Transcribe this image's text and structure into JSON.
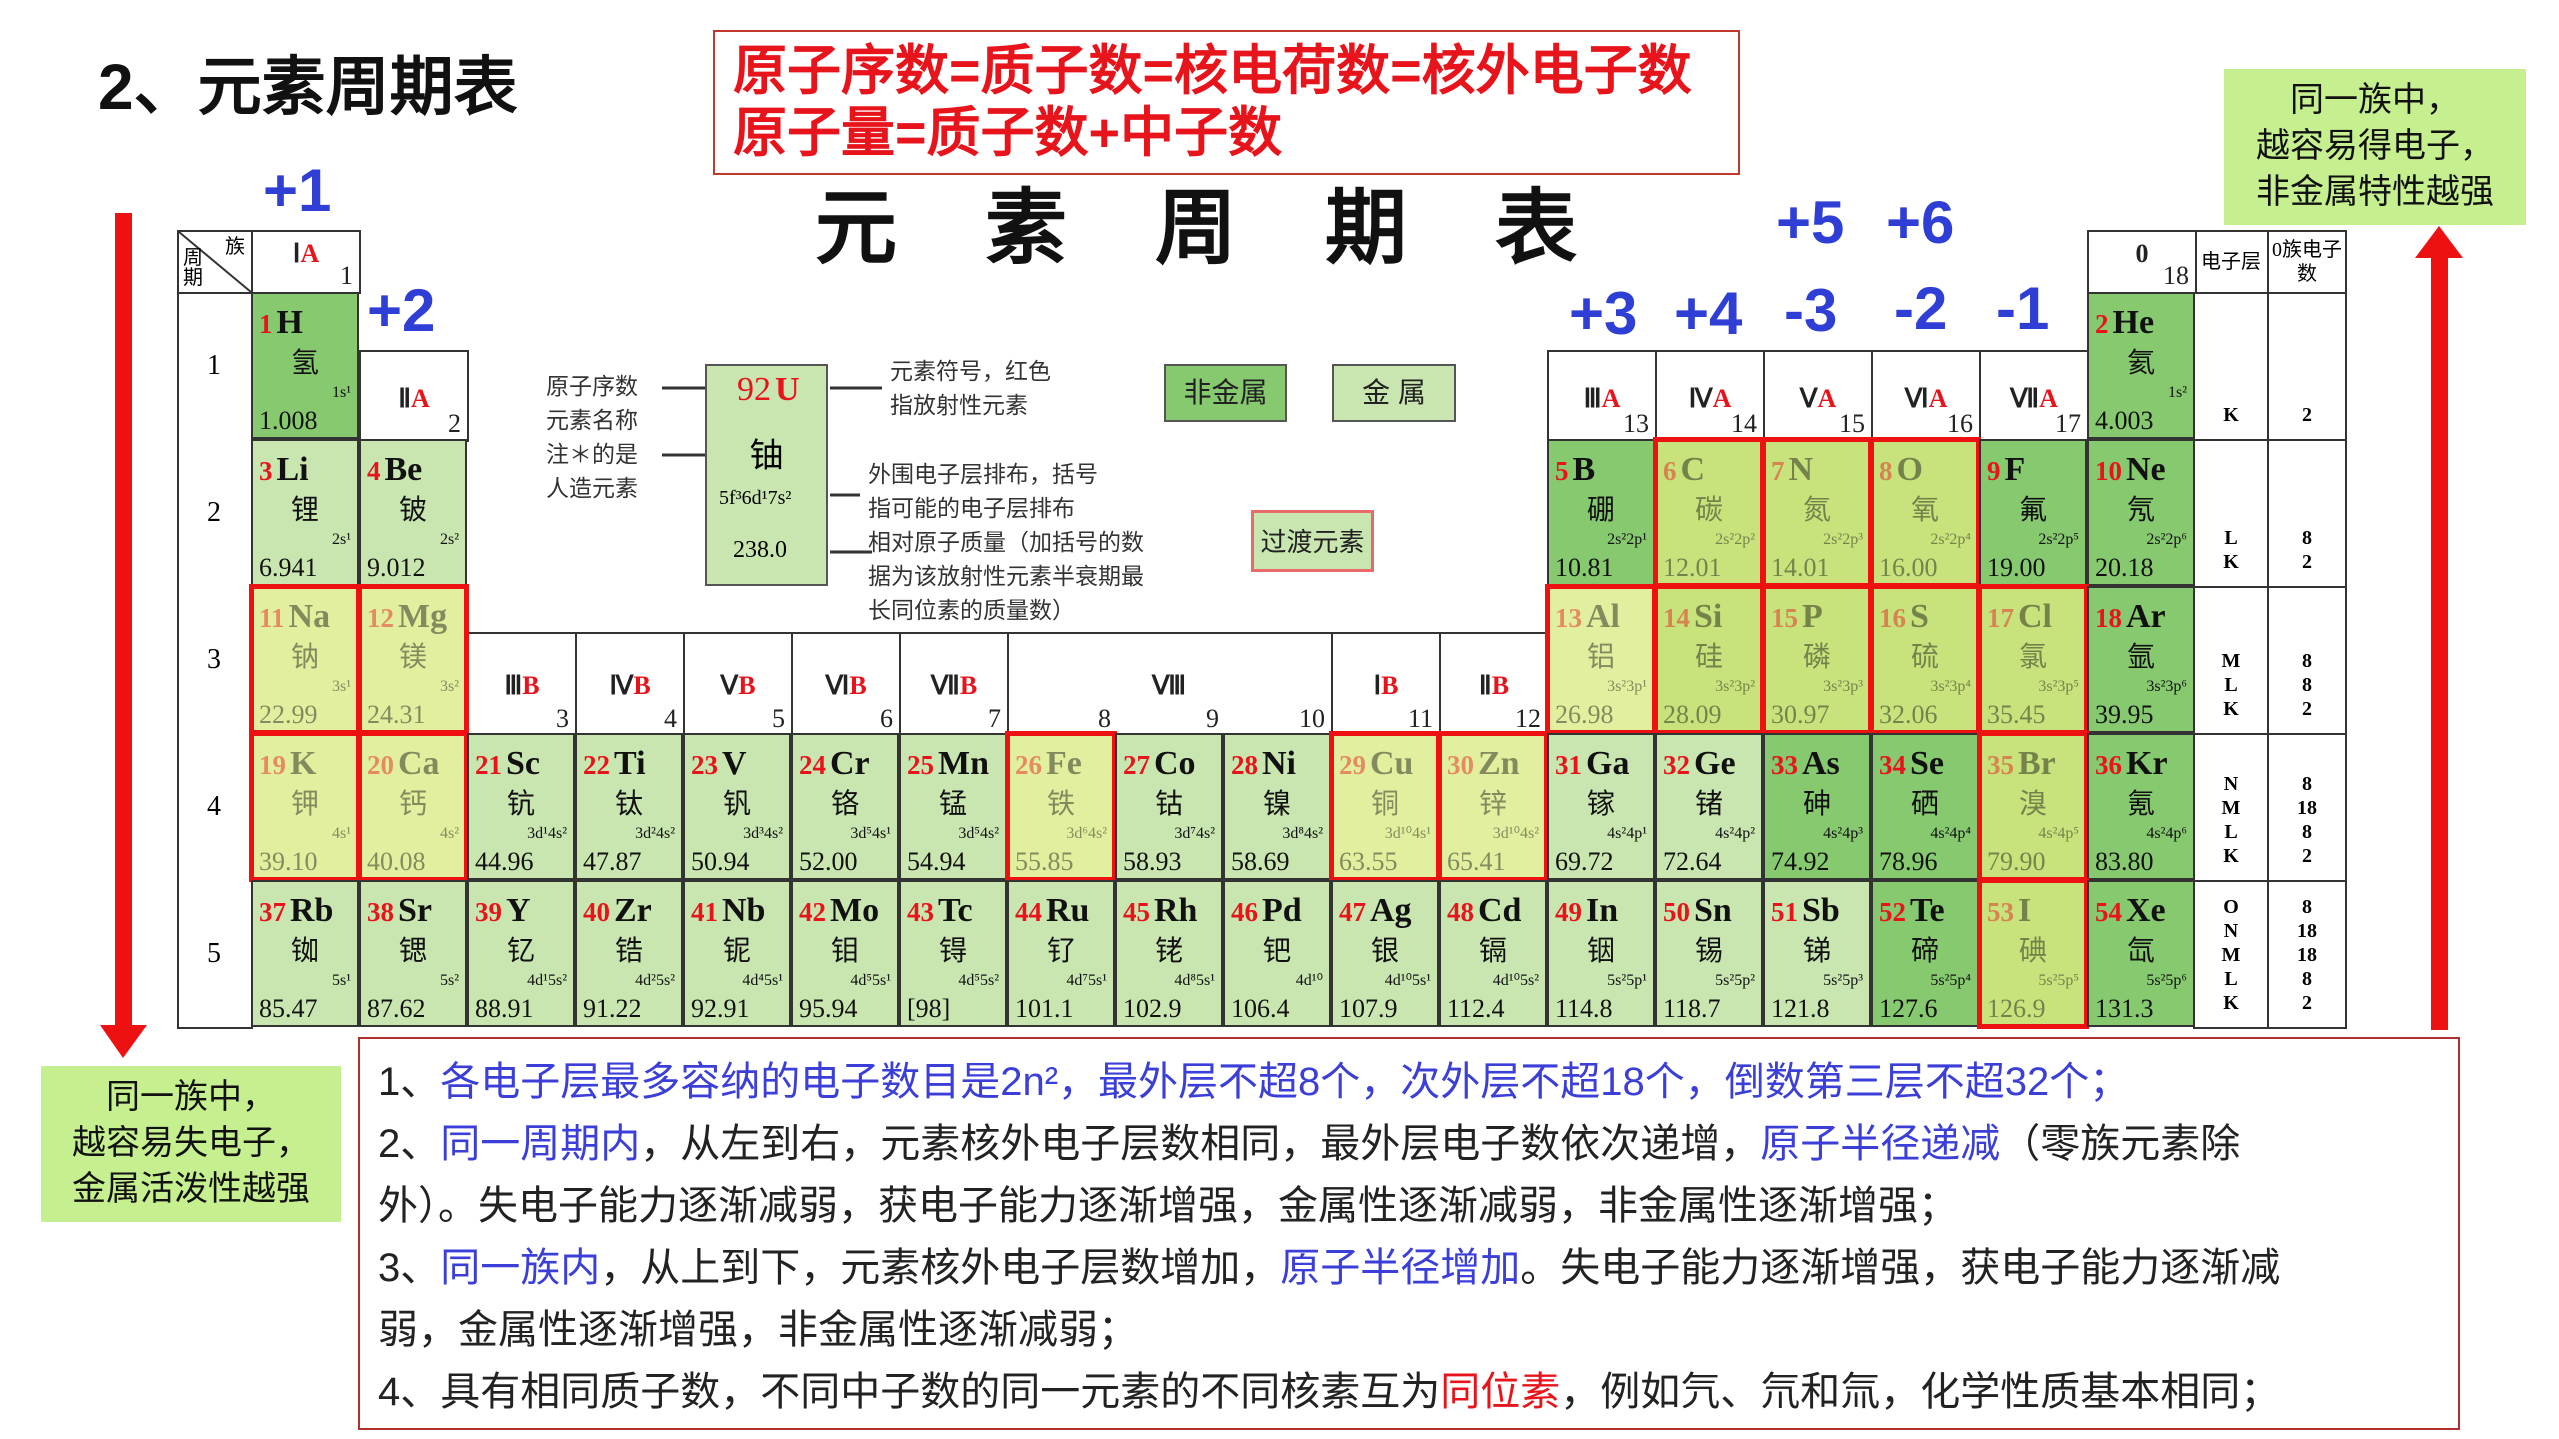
{
  "slide_title": "2、元素周期表",
  "formula_lines": [
    "原子序数=质子数=核电荷数=核外电子数",
    "原子量=质子数+中子数"
  ],
  "right_box": [
    "同一族中，",
    "越容易得电子，",
    "非金属特性越强"
  ],
  "left_box": [
    "同一族中，",
    "越容易失电子，",
    "金属活泼性越强"
  ],
  "table_title": "元素周期表",
  "valence_labels": {
    "g1": "+1",
    "g2": "+2",
    "g13": "+3",
    "g14": "+4",
    "g15_top": "+5",
    "g16_top": "+6",
    "g15": "-3",
    "g16": "-2",
    "g17": "-1"
  },
  "corner": {
    "group": "族",
    "period": "周期"
  },
  "shell_header": "电子层",
  "count_header": "0族电子数",
  "groups": [
    {
      "col": 1,
      "roman": "Ⅰ",
      "letter": "A",
      "num": "1"
    },
    {
      "col": 2,
      "roman": "Ⅱ",
      "letter": "A",
      "num": "2"
    },
    {
      "col": 3,
      "roman": "Ⅲ",
      "letter": "B",
      "num": "3"
    },
    {
      "col": 4,
      "roman": "Ⅳ",
      "letter": "B",
      "num": "4"
    },
    {
      "col": 5,
      "roman": "Ⅴ",
      "letter": "B",
      "num": "5"
    },
    {
      "col": 6,
      "roman": "Ⅵ",
      "letter": "B",
      "num": "6"
    },
    {
      "col": 7,
      "roman": "Ⅶ",
      "letter": "B",
      "num": "7"
    },
    {
      "col": 8,
      "roman": "Ⅷ",
      "letter": "",
      "num": "8"
    },
    {
      "col": 9,
      "roman": "",
      "letter": "",
      "num": "9"
    },
    {
      "col": 10,
      "roman": "",
      "letter": "",
      "num": "10"
    },
    {
      "col": 11,
      "roman": "Ⅰ",
      "letter": "B",
      "num": "11"
    },
    {
      "col": 12,
      "roman": "Ⅱ",
      "letter": "B",
      "num": "12"
    },
    {
      "col": 13,
      "roman": "Ⅲ",
      "letter": "A",
      "num": "13"
    },
    {
      "col": 14,
      "roman": "Ⅳ",
      "letter": "A",
      "num": "14"
    },
    {
      "col": 15,
      "roman": "Ⅴ",
      "letter": "A",
      "num": "15"
    },
    {
      "col": 16,
      "roman": "Ⅵ",
      "letter": "A",
      "num": "16"
    },
    {
      "col": 17,
      "roman": "Ⅶ",
      "letter": "A",
      "num": "17"
    },
    {
      "col": 18,
      "roman": "0",
      "letter": "",
      "num": "18"
    }
  ],
  "periods": [
    "1",
    "2",
    "3",
    "4",
    "5"
  ],
  "shells": [
    {
      "layers": [
        "K"
      ],
      "counts": [
        "2"
      ]
    },
    {
      "layers": [
        "L",
        "K"
      ],
      "counts": [
        "8",
        "2"
      ]
    },
    {
      "layers": [
        "M",
        "L",
        "K"
      ],
      "counts": [
        "8",
        "8",
        "2"
      ]
    },
    {
      "layers": [
        "N",
        "M",
        "L",
        "K"
      ],
      "counts": [
        "8",
        "18",
        "8",
        "2"
      ]
    },
    {
      "layers": [
        "O",
        "N",
        "M",
        "L",
        "K"
      ],
      "counts": [
        "8",
        "18",
        "18",
        "8",
        "2"
      ]
    }
  ],
  "elements": [
    {
      "n": "1",
      "s": "H",
      "name": "氢",
      "cfg": "1s¹",
      "m": "1.008",
      "p": 1,
      "g": 1,
      "t": "nonmetal"
    },
    {
      "n": "2",
      "s": "He",
      "name": "氦",
      "cfg": "1s²",
      "m": "4.003",
      "p": 1,
      "g": 18,
      "t": "nonmetal"
    },
    {
      "n": "3",
      "s": "Li",
      "name": "锂",
      "cfg": "2s¹",
      "m": "6.941",
      "p": 2,
      "g": 1,
      "t": "metal"
    },
    {
      "n": "4",
      "s": "Be",
      "name": "铍",
      "cfg": "2s²",
      "m": "9.012",
      "p": 2,
      "g": 2,
      "t": "metal"
    },
    {
      "n": "5",
      "s": "B",
      "name": "硼",
      "cfg": "2s²2p¹",
      "m": "10.81",
      "p": 2,
      "g": 13,
      "t": "nonmetal"
    },
    {
      "n": "6",
      "s": "C",
      "name": "碳",
      "cfg": "2s²2p²",
      "m": "12.01",
      "p": 2,
      "g": 14,
      "t": "nonmetal",
      "hl": true
    },
    {
      "n": "7",
      "s": "N",
      "name": "氮",
      "cfg": "2s²2p³",
      "m": "14.01",
      "p": 2,
      "g": 15,
      "t": "nonmetal",
      "hl": true
    },
    {
      "n": "8",
      "s": "O",
      "name": "氧",
      "cfg": "2s²2p⁴",
      "m": "16.00",
      "p": 2,
      "g": 16,
      "t": "nonmetal",
      "hl": true
    },
    {
      "n": "9",
      "s": "F",
      "name": "氟",
      "cfg": "2s²2p⁵",
      "m": "19.00",
      "p": 2,
      "g": 17,
      "t": "nonmetal"
    },
    {
      "n": "10",
      "s": "Ne",
      "name": "氖",
      "cfg": "2s²2p⁶",
      "m": "20.18",
      "p": 2,
      "g": 18,
      "t": "nonmetal"
    },
    {
      "n": "11",
      "s": "Na",
      "name": "钠",
      "cfg": "3s¹",
      "m": "22.99",
      "p": 3,
      "g": 1,
      "t": "metal",
      "hl": true
    },
    {
      "n": "12",
      "s": "Mg",
      "name": "镁",
      "cfg": "3s²",
      "m": "24.31",
      "p": 3,
      "g": 2,
      "t": "metal",
      "hl": true
    },
    {
      "n": "13",
      "s": "Al",
      "name": "铝",
      "cfg": "3s²3p¹",
      "m": "26.98",
      "p": 3,
      "g": 13,
      "t": "metal",
      "hl": true
    },
    {
      "n": "14",
      "s": "Si",
      "name": "硅",
      "cfg": "3s²3p²",
      "m": "28.09",
      "p": 3,
      "g": 14,
      "t": "nonmetal",
      "hl": true
    },
    {
      "n": "15",
      "s": "P",
      "name": "磷",
      "cfg": "3s²3p³",
      "m": "30.97",
      "p": 3,
      "g": 15,
      "t": "nonmetal",
      "hl": true
    },
    {
      "n": "16",
      "s": "S",
      "name": "硫",
      "cfg": "3s²3p⁴",
      "m": "32.06",
      "p": 3,
      "g": 16,
      "t": "nonmetal",
      "hl": true
    },
    {
      "n": "17",
      "s": "Cl",
      "name": "氯",
      "cfg": "3s²3p⁵",
      "m": "35.45",
      "p": 3,
      "g": 17,
      "t": "nonmetal",
      "hl": true
    },
    {
      "n": "18",
      "s": "Ar",
      "name": "氩",
      "cfg": "3s²3p⁶",
      "m": "39.95",
      "p": 3,
      "g": 18,
      "t": "nonmetal"
    },
    {
      "n": "19",
      "s": "K",
      "name": "钾",
      "cfg": "4s¹",
      "m": "39.10",
      "p": 4,
      "g": 1,
      "t": "metal",
      "hl": true
    },
    {
      "n": "20",
      "s": "Ca",
      "name": "钙",
      "cfg": "4s²",
      "m": "40.08",
      "p": 4,
      "g": 2,
      "t": "metal",
      "hl": true
    },
    {
      "n": "21",
      "s": "Sc",
      "name": "钪",
      "cfg": "3d¹4s²",
      "m": "44.96",
      "p": 4,
      "g": 3,
      "t": "metal"
    },
    {
      "n": "22",
      "s": "Ti",
      "name": "钛",
      "cfg": "3d²4s²",
      "m": "47.87",
      "p": 4,
      "g": 4,
      "t": "metal"
    },
    {
      "n": "23",
      "s": "V",
      "name": "钒",
      "cfg": "3d³4s²",
      "m": "50.94",
      "p": 4,
      "g": 5,
      "t": "metal"
    },
    {
      "n": "24",
      "s": "Cr",
      "name": "铬",
      "cfg": "3d⁵4s¹",
      "m": "52.00",
      "p": 4,
      "g": 6,
      "t": "metal"
    },
    {
      "n": "25",
      "s": "Mn",
      "name": "锰",
      "cfg": "3d⁵4s²",
      "m": "54.94",
      "p": 4,
      "g": 7,
      "t": "metal"
    },
    {
      "n": "26",
      "s": "Fe",
      "name": "铁",
      "cfg": "3d⁶4s²",
      "m": "55.85",
      "p": 4,
      "g": 8,
      "t": "metal",
      "hl": true
    },
    {
      "n": "27",
      "s": "Co",
      "name": "钴",
      "cfg": "3d⁷4s²",
      "m": "58.93",
      "p": 4,
      "g": 9,
      "t": "metal"
    },
    {
      "n": "28",
      "s": "Ni",
      "name": "镍",
      "cfg": "3d⁸4s²",
      "m": "58.69",
      "p": 4,
      "g": 10,
      "t": "metal"
    },
    {
      "n": "29",
      "s": "Cu",
      "name": "铜",
      "cfg": "3d¹⁰4s¹",
      "m": "63.55",
      "p": 4,
      "g": 11,
      "t": "metal",
      "hl": true
    },
    {
      "n": "30",
      "s": "Zn",
      "name": "锌",
      "cfg": "3d¹⁰4s²",
      "m": "65.41",
      "p": 4,
      "g": 12,
      "t": "metal",
      "hl": true
    },
    {
      "n": "31",
      "s": "Ga",
      "name": "镓",
      "cfg": "4s²4p¹",
      "m": "69.72",
      "p": 4,
      "g": 13,
      "t": "metal"
    },
    {
      "n": "32",
      "s": "Ge",
      "name": "锗",
      "cfg": "4s²4p²",
      "m": "72.64",
      "p": 4,
      "g": 14,
      "t": "metal"
    },
    {
      "n": "33",
      "s": "As",
      "name": "砷",
      "cfg": "4s²4p³",
      "m": "74.92",
      "p": 4,
      "g": 15,
      "t": "nonmetal"
    },
    {
      "n": "34",
      "s": "Se",
      "name": "硒",
      "cfg": "4s²4p⁴",
      "m": "78.96",
      "p": 4,
      "g": 16,
      "t": "nonmetal"
    },
    {
      "n": "35",
      "s": "Br",
      "name": "溴",
      "cfg": "4s²4p⁵",
      "m": "79.90",
      "p": 4,
      "g": 17,
      "t": "nonmetal",
      "hl": true
    },
    {
      "n": "36",
      "s": "Kr",
      "name": "氪",
      "cfg": "4s²4p⁶",
      "m": "83.80",
      "p": 4,
      "g": 18,
      "t": "nonmetal"
    },
    {
      "n": "37",
      "s": "Rb",
      "name": "铷",
      "cfg": "5s¹",
      "m": "85.47",
      "p": 5,
      "g": 1,
      "t": "metal"
    },
    {
      "n": "38",
      "s": "Sr",
      "name": "锶",
      "cfg": "5s²",
      "m": "87.62",
      "p": 5,
      "g": 2,
      "t": "metal"
    },
    {
      "n": "39",
      "s": "Y",
      "name": "钇",
      "cfg": "4d¹5s²",
      "m": "88.91",
      "p": 5,
      "g": 3,
      "t": "metal"
    },
    {
      "n": "40",
      "s": "Zr",
      "name": "锆",
      "cfg": "4d²5s²",
      "m": "91.22",
      "p": 5,
      "g": 4,
      "t": "metal"
    },
    {
      "n": "41",
      "s": "Nb",
      "name": "铌",
      "cfg": "4d⁴5s¹",
      "m": "92.91",
      "p": 5,
      "g": 5,
      "t": "metal"
    },
    {
      "n": "42",
      "s": "Mo",
      "name": "钼",
      "cfg": "4d⁵5s¹",
      "m": "95.94",
      "p": 5,
      "g": 6,
      "t": "metal"
    },
    {
      "n": "43",
      "s": "Tc",
      "name": "锝",
      "cfg": "4d⁵5s²",
      "m": "[98]",
      "p": 5,
      "g": 7,
      "t": "metal"
    },
    {
      "n": "44",
      "s": "Ru",
      "name": "钌",
      "cfg": "4d⁷5s¹",
      "m": "101.1",
      "p": 5,
      "g": 8,
      "t": "metal"
    },
    {
      "n": "45",
      "s": "Rh",
      "name": "铑",
      "cfg": "4d⁸5s¹",
      "m": "102.9",
      "p": 5,
      "g": 9,
      "t": "metal"
    },
    {
      "n": "46",
      "s": "Pd",
      "name": "钯",
      "cfg": "4d¹⁰",
      "m": "106.4",
      "p": 5,
      "g": 10,
      "t": "metal"
    },
    {
      "n": "47",
      "s": "Ag",
      "name": "银",
      "cfg": "4d¹⁰5s¹",
      "m": "107.9",
      "p": 5,
      "g": 11,
      "t": "metal"
    },
    {
      "n": "48",
      "s": "Cd",
      "name": "镉",
      "cfg": "4d¹⁰5s²",
      "m": "112.4",
      "p": 5,
      "g": 12,
      "t": "metal"
    },
    {
      "n": "49",
      "s": "In",
      "name": "铟",
      "cfg": "5s²5p¹",
      "m": "114.8",
      "p": 5,
      "g": 13,
      "t": "metal"
    },
    {
      "n": "50",
      "s": "Sn",
      "name": "锡",
      "cfg": "5s²5p²",
      "m": "118.7",
      "p": 5,
      "g": 14,
      "t": "metal"
    },
    {
      "n": "51",
      "s": "Sb",
      "name": "锑",
      "cfg": "5s²5p³",
      "m": "121.8",
      "p": 5,
      "g": 15,
      "t": "metal"
    },
    {
      "n": "52",
      "s": "Te",
      "name": "碲",
      "cfg": "5s²5p⁴",
      "m": "127.6",
      "p": 5,
      "g": 16,
      "t": "nonmetal"
    },
    {
      "n": "53",
      "s": "I",
      "name": "碘",
      "cfg": "5s²5p⁵",
      "m": "126.9",
      "p": 5,
      "g": 17,
      "t": "nonmetal",
      "hl": true
    },
    {
      "n": "54",
      "s": "Xe",
      "name": "氙",
      "cfg": "5s²5p⁶",
      "m": "131.3",
      "p": 5,
      "g": 18,
      "t": "nonmetal"
    }
  ],
  "legend": {
    "sample": {
      "n": "92",
      "s": "U",
      "name": "铀",
      "cfg": "5f³6d¹7s²",
      "m": "238.0"
    },
    "left_labels": [
      "原子序数",
      "元素名称",
      "注＊的是",
      "人造元素"
    ],
    "right_top": [
      "元素符号，红色",
      "指放射性元素"
    ],
    "right_bottom": [
      "外围电子层排布，括号",
      "指可能的电子层排布",
      "相对原子质量（加括号的数",
      "据为该放射性元素半衰期最",
      "长同位素的质量数）"
    ],
    "nonmetal": "非金属",
    "metal": "金  属",
    "transition": "过渡元素"
  },
  "colors": {
    "nonmetal": "#86c96f",
    "metal": "#c9e6b0",
    "highlight_border": "#ee1111",
    "valence_blue": "#2f3fd6",
    "formula_red": "#e8141c"
  },
  "notes": [
    [
      {
        "t": "1、"
      },
      {
        "t": "各电子层最多容纳的电子数目是2n²，最外层不超8个，次外层不超18个，倒数第三层不超32个；",
        "c": "blue"
      }
    ],
    [
      {
        "t": "2、"
      },
      {
        "t": "同一周期内",
        "c": "blue"
      },
      {
        "t": "，从左到右，元素核外电子层数相同，最外层电子数依次递增，"
      },
      {
        "t": "原子半径递减",
        "c": "blue"
      },
      {
        "t": "（零族元素除"
      }
    ],
    [
      {
        "t": "外）。失电子能力逐渐减弱，获电子能力逐渐增强，金属性逐渐减弱，非金属性逐渐增强；"
      }
    ],
    [
      {
        "t": "3、"
      },
      {
        "t": "同一族内",
        "c": "blue"
      },
      {
        "t": "，从上到下，元素核外电子层数增加，"
      },
      {
        "t": "原子半径增加",
        "c": "blue"
      },
      {
        "t": "。失电子能力逐渐增强，获电子能力逐渐减"
      }
    ],
    [
      {
        "t": "弱，金属性逐渐增强，非金属性逐渐减弱；"
      }
    ],
    [
      {
        "t": "4、具有相同质子数，不同中子数的同一元素的不同核素互为"
      },
      {
        "t": "同位素",
        "c": "red"
      },
      {
        "t": "，例如氕、氘和氚，化学性质基本相同；"
      }
    ]
  ]
}
